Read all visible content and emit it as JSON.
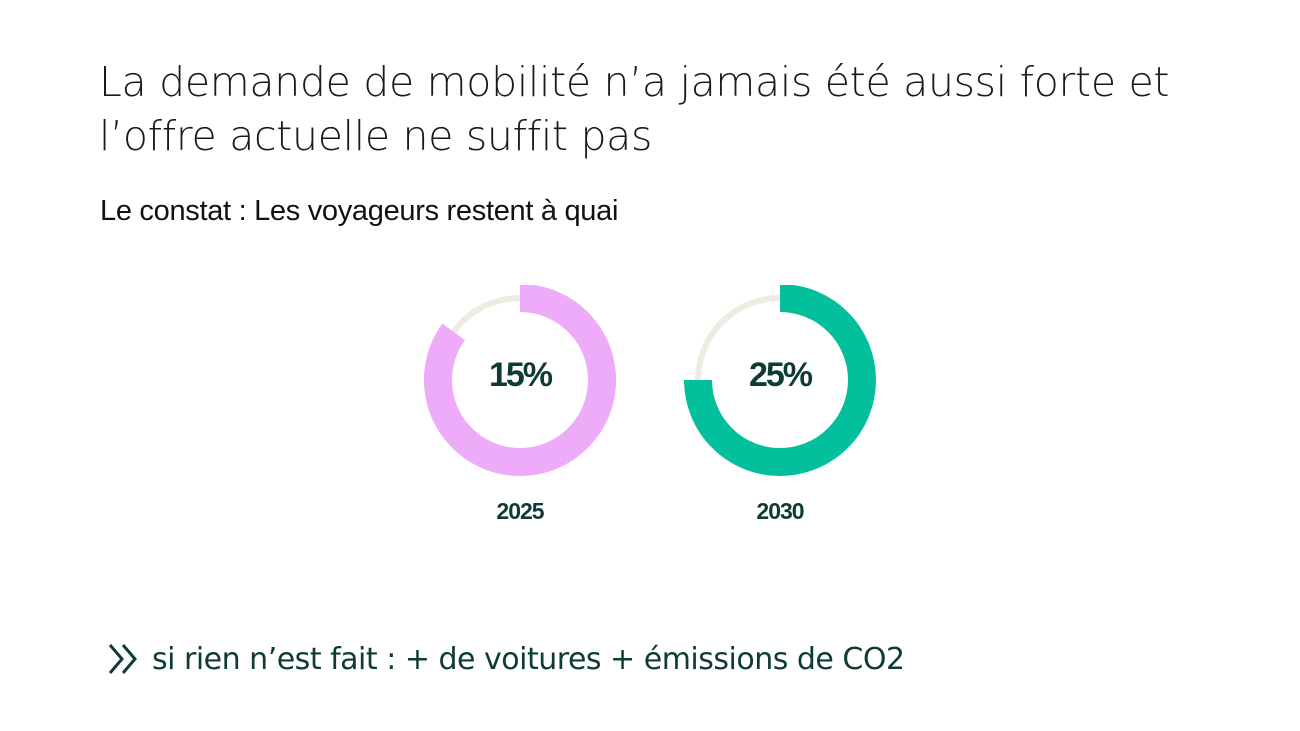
{
  "slide": {
    "title_line1": "La demande de mobilité n’a jamais été aussi forte et",
    "title_line2": "l’offre actuelle ne suffit pas",
    "subtitle": "Le constat : Les voyageurs restent à quai",
    "bottom_text": "si rien n’est fait : + de voitures + émissions de CO2",
    "bottom_icon": "double-chevron-right-icon"
  },
  "colors": {
    "track": "#eeebe3",
    "pink": "#eeabf9",
    "green": "#03bf9c",
    "dark_text": "#0f3b36"
  },
  "chart_data": [
    {
      "type": "pie",
      "label": "2025",
      "value": 15,
      "value_label": "15%",
      "color": "#eeabf9"
    },
    {
      "type": "pie",
      "label": "2030",
      "value": 25,
      "value_label": "25%",
      "color": "#03bf9c"
    }
  ]
}
